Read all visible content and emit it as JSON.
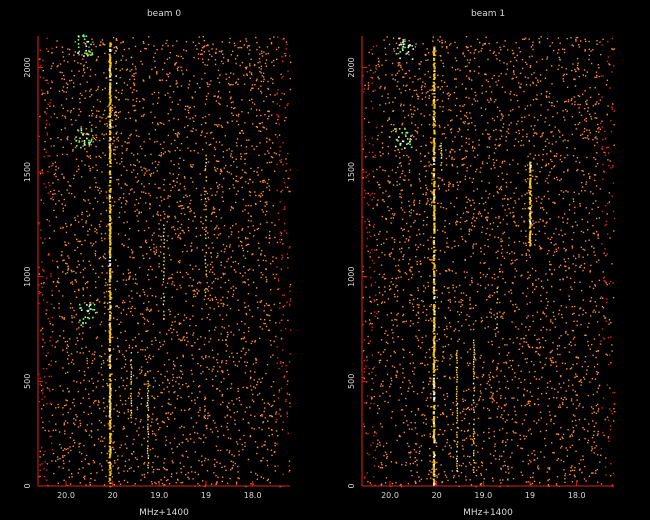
{
  "chart_data": [
    {
      "type": "scatter",
      "title": "beam 0",
      "xlabel": "MHz+1400",
      "ylabel": "",
      "xlim": [
        20.3,
        17.6
      ],
      "ylim": [
        0,
        2150
      ],
      "yticks": [
        0,
        500,
        1000,
        1500,
        2000
      ],
      "xticks": [
        20.0,
        19.5,
        19.0,
        18.5,
        18.0
      ],
      "xtick_labels": [
        "20.0",
        "20",
        "19.0",
        "19",
        "18.0"
      ],
      "grid": false,
      "background": "#000000",
      "colors": {
        "axis": "#e02020",
        "points": "#ff8c2a",
        "lines": "#ffd200",
        "bright": "#7dff7d"
      },
      "point_density_per_y_unit": 1.5,
      "vertical_features": [
        {
          "x": 19.53,
          "y_from": 0,
          "y_to": 2150,
          "intensity": "strong"
        },
        {
          "x": 19.46,
          "y_from": 1680,
          "y_to": 2100,
          "intensity": "weak"
        },
        {
          "x": 19.3,
          "y_from": 330,
          "y_to": 640,
          "intensity": "medium"
        },
        {
          "x": 19.12,
          "y_from": 70,
          "y_to": 550,
          "intensity": "medium"
        },
        {
          "x": 18.95,
          "y_from": 780,
          "y_to": 1250,
          "intensity": "weak"
        },
        {
          "x": 18.5,
          "y_from": 880,
          "y_to": 1600,
          "intensity": "weak"
        }
      ],
      "bright_clusters": [
        {
          "x": 19.8,
          "y": 2110
        },
        {
          "x": 19.82,
          "y": 1670
        },
        {
          "x": 19.78,
          "y": 820
        }
      ]
    },
    {
      "type": "scatter",
      "title": "beam 1",
      "xlabel": "MHz+1400",
      "ylabel": "",
      "xlim": [
        20.3,
        17.6
      ],
      "ylim": [
        0,
        2150
      ],
      "yticks": [
        0,
        500,
        1000,
        1500,
        2000
      ],
      "xticks": [
        20.0,
        19.5,
        19.0,
        18.5,
        18.0
      ],
      "xtick_labels": [
        "20.0",
        "20",
        "19.0",
        "19",
        "18.0"
      ],
      "grid": false,
      "background": "#000000",
      "colors": {
        "axis": "#e02020",
        "points": "#ff8c2a",
        "lines": "#ffd200",
        "bright": "#7dff7d"
      },
      "point_density_per_y_unit": 1.5,
      "vertical_features": [
        {
          "x": 19.53,
          "y_from": 0,
          "y_to": 2100,
          "intensity": "strong"
        },
        {
          "x": 19.45,
          "y_from": 1500,
          "y_to": 1640,
          "intensity": "medium"
        },
        {
          "x": 19.28,
          "y_from": 70,
          "y_to": 650,
          "intensity": "medium"
        },
        {
          "x": 19.1,
          "y_from": 50,
          "y_to": 700,
          "intensity": "medium"
        },
        {
          "x": 18.5,
          "y_from": 1150,
          "y_to": 1550,
          "intensity": "strong"
        },
        {
          "x": 18.85,
          "y_from": 750,
          "y_to": 1000,
          "intensity": "weak"
        }
      ],
      "bright_clusters": [
        {
          "x": 19.85,
          "y": 2090
        },
        {
          "x": 19.86,
          "y": 1660
        }
      ]
    }
  ]
}
